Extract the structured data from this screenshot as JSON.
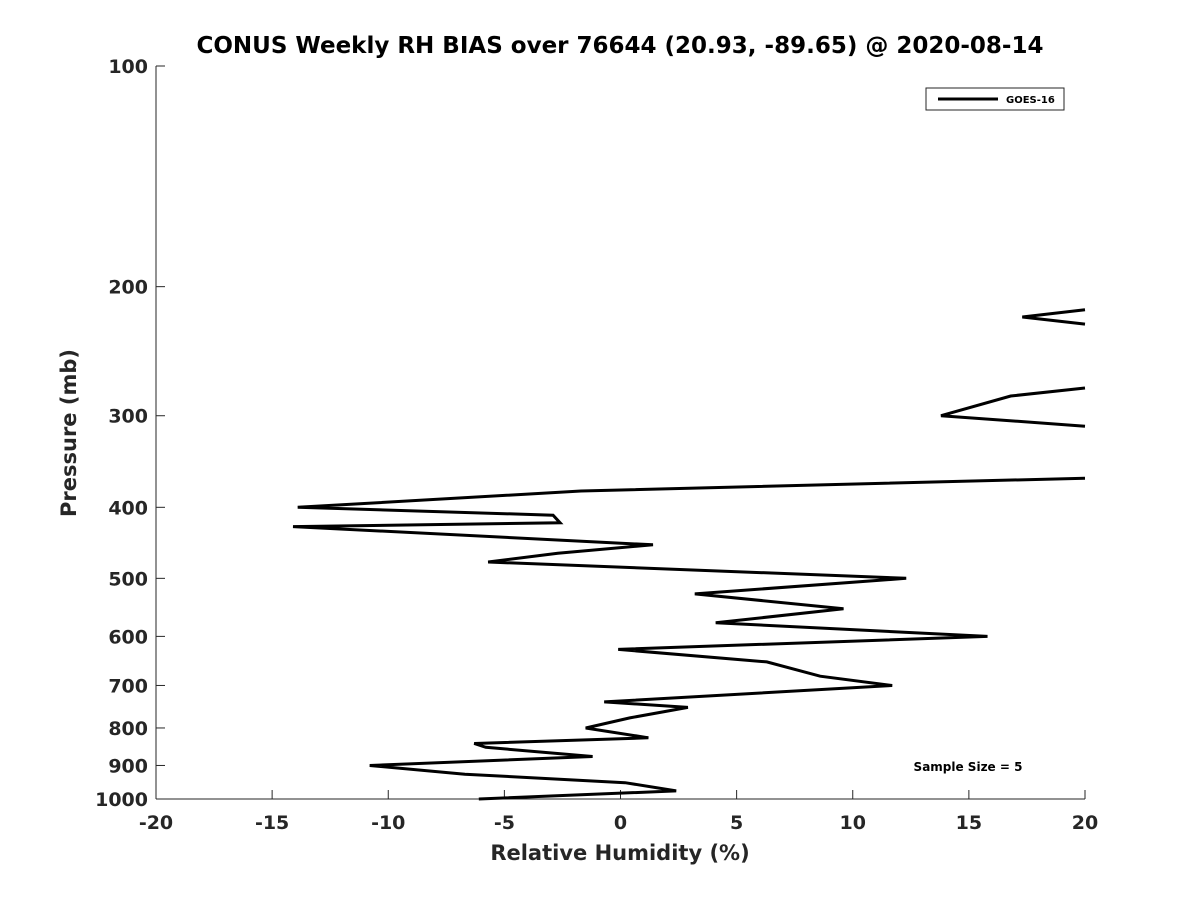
{
  "chart_data": {
    "type": "line",
    "title": "CONUS Weekly RH BIAS over 76644 (20.93, -89.65) @ 2020-08-14",
    "xlabel": "Relative Humidity (%)",
    "ylabel": "Pressure (mb)",
    "xlim": [
      -20,
      20
    ],
    "ylim": [
      100,
      1000
    ],
    "yscale": "log",
    "y_reversed": true,
    "grid": false,
    "legend_position": "top-right",
    "x_ticks": [
      "-20",
      "-15",
      "-10",
      "-5",
      "0",
      "5",
      "10",
      "15",
      "20"
    ],
    "y_ticks": [
      "100",
      "200",
      "300",
      "400",
      "500",
      "600",
      "700",
      "800",
      "900",
      "1000"
    ],
    "annotation": "Sample Size = 5",
    "series": [
      {
        "name": "GOES-16",
        "color": "#000000",
        "points": [
          [
            -6.1,
            1000
          ],
          [
            2.4,
            975
          ],
          [
            0.2,
            950
          ],
          [
            -6.7,
            925
          ],
          [
            -10.8,
            900
          ],
          [
            -1.2,
            875
          ],
          [
            -5.8,
            850
          ],
          [
            -6.3,
            840
          ],
          [
            1.2,
            825
          ],
          [
            -1.5,
            800
          ],
          [
            0.4,
            775
          ],
          [
            2.9,
            750
          ],
          [
            -0.7,
            737
          ],
          [
            11.7,
            700
          ],
          [
            8.6,
            680
          ],
          [
            6.3,
            650
          ],
          [
            -0.1,
            625
          ],
          [
            15.8,
            600
          ],
          [
            4.1,
            575
          ],
          [
            9.6,
            550
          ],
          [
            3.2,
            525
          ],
          [
            12.3,
            500
          ],
          [
            -5.7,
            475
          ],
          [
            -2.7,
            462
          ],
          [
            1.4,
            450
          ],
          [
            -14.1,
            425
          ],
          [
            -2.6,
            420
          ],
          [
            -2.9,
            410
          ],
          [
            -13.9,
            400
          ],
          [
            -1.7,
            380
          ],
          [
            20,
            365
          ]
        ],
        "upper_segments": [
          [
            [
              20,
              310
            ],
            [
              13.8,
              300
            ],
            [
              16.8,
              282
            ],
            [
              20,
              275
            ]
          ],
          [
            [
              20,
              225
            ],
            [
              17.3,
              220
            ],
            [
              20,
              215
            ]
          ]
        ]
      }
    ]
  }
}
